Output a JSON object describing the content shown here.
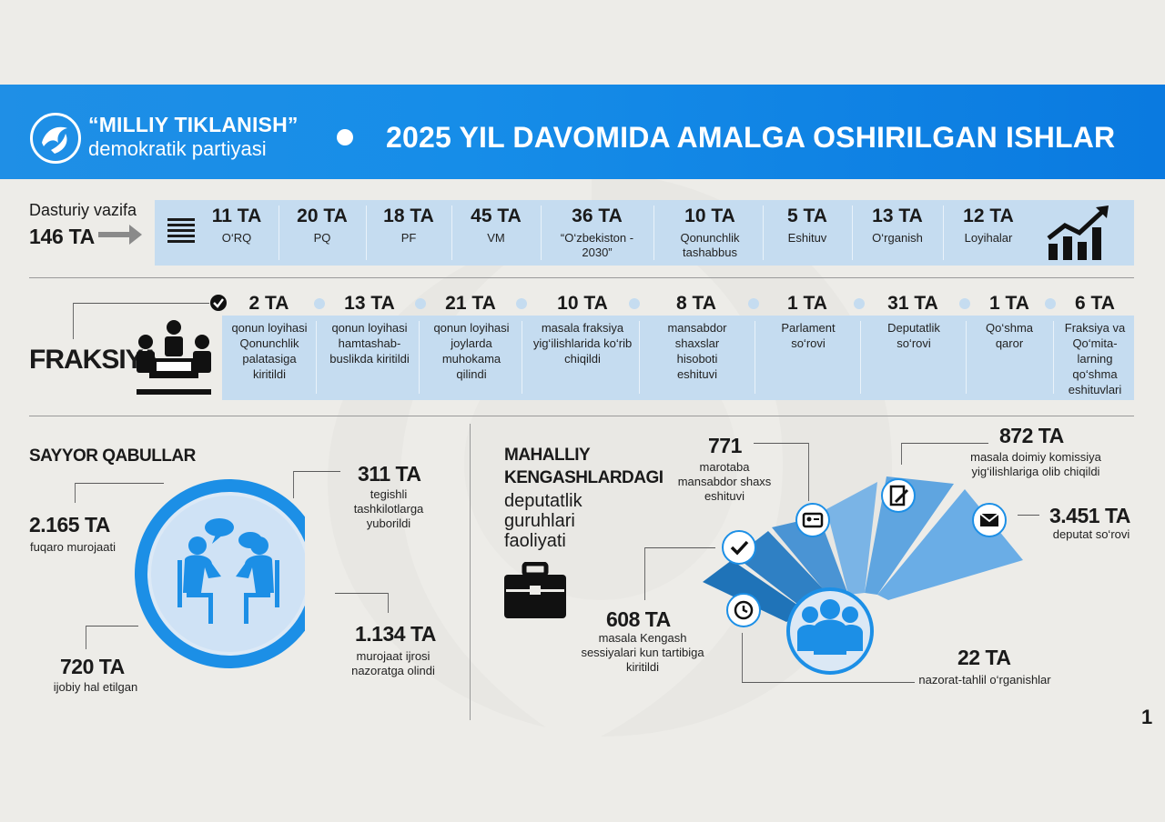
{
  "header": {
    "party_name": "“MILLIY TIKLANISH”",
    "party_subtitle": "demokratik partiyasi",
    "title": "2025 YIL DAVOMIDA AMALGA OSHIRILGAN ISHLAR"
  },
  "program": {
    "label": "Dasturiy vazifa",
    "total": "146 TA",
    "items": [
      {
        "value": "11 TA",
        "caption": "O‘RQ"
      },
      {
        "value": "20 TA",
        "caption": "PQ"
      },
      {
        "value": "18 TA",
        "caption": "PF"
      },
      {
        "value": "45 TA",
        "caption": "VM"
      },
      {
        "value": "36 TA",
        "caption": "“O‘zbekiston - 2030”"
      },
      {
        "value": "10 TA",
        "caption": "Qonunchlik tashabbus"
      },
      {
        "value": "5 TA",
        "caption": "Eshituv"
      },
      {
        "value": "13 TA",
        "caption": "O‘rganish"
      },
      {
        "value": "12 TA",
        "caption": "Loyihalar"
      }
    ]
  },
  "fraksiya": {
    "label": "FRAKSIYA",
    "items": [
      {
        "value": "2 TA",
        "caption": "qonun loyihasi Qonunchlik palatasiga kiritildi"
      },
      {
        "value": "13 TA",
        "caption": "qonun loyihasi hamtashab-buslikda kiritildi"
      },
      {
        "value": "21 TA",
        "caption": "qonun loyihasi joylarda muhokama qilindi"
      },
      {
        "value": "10 TA",
        "caption": "masala fraksiya yig‘ilishlarida ko‘rib chiqildi"
      },
      {
        "value": "8 TA",
        "caption": "mansabdor shaxslar hisoboti eshituvi"
      },
      {
        "value": "1 TA",
        "caption": "Parlament so‘rovi"
      },
      {
        "value": "31 TA",
        "caption": "Deputatlik so‘rovi"
      },
      {
        "value": "1 TA",
        "caption": "Qo‘shma qaror"
      },
      {
        "value": "6 TA",
        "caption": "Fraksiya va Qo‘mita-larning qo‘shma eshituvlari"
      }
    ]
  },
  "sayyor": {
    "title": "SAYYOR QABULLAR",
    "s1_value": "2.165 TA",
    "s1_text": "fuqaro murojaati",
    "s2_value": "311 TA",
    "s2_text": "tegishli tashkilotlarga yuborildi",
    "s3_value": "720 TA",
    "s3_text": "ijobiy hal etilgan",
    "s4_value": "1.134 TA",
    "s4_text": "murojaat ijrosi nazoratga olindi"
  },
  "mahalliy": {
    "title_bold": "MAHALLIY KENGASHLARDAGI",
    "title_light": "deputatlik guruhlari faoliyati",
    "m1_value": "771",
    "m1_text": "marotaba mansabdor shaxs eshituvi",
    "m2_value": "872 TA",
    "m2_text": "masala doimiy komissiya yig‘ilishlariga olib chiqildi",
    "m3_value": "3.451 TA",
    "m3_text": "deputat so‘rovi",
    "m4_value": "608 TA",
    "m4_text": "masala Kengash sessiyalari kun tartibiga kiritildi",
    "m5_value": "22 TA",
    "m5_text": "nazorat-tahlil o‘rganishlar"
  },
  "page_number": "1",
  "colors": {
    "accent": "#1c8fe6",
    "light_bar": "#c5dcf0",
    "background": "#edece8"
  }
}
